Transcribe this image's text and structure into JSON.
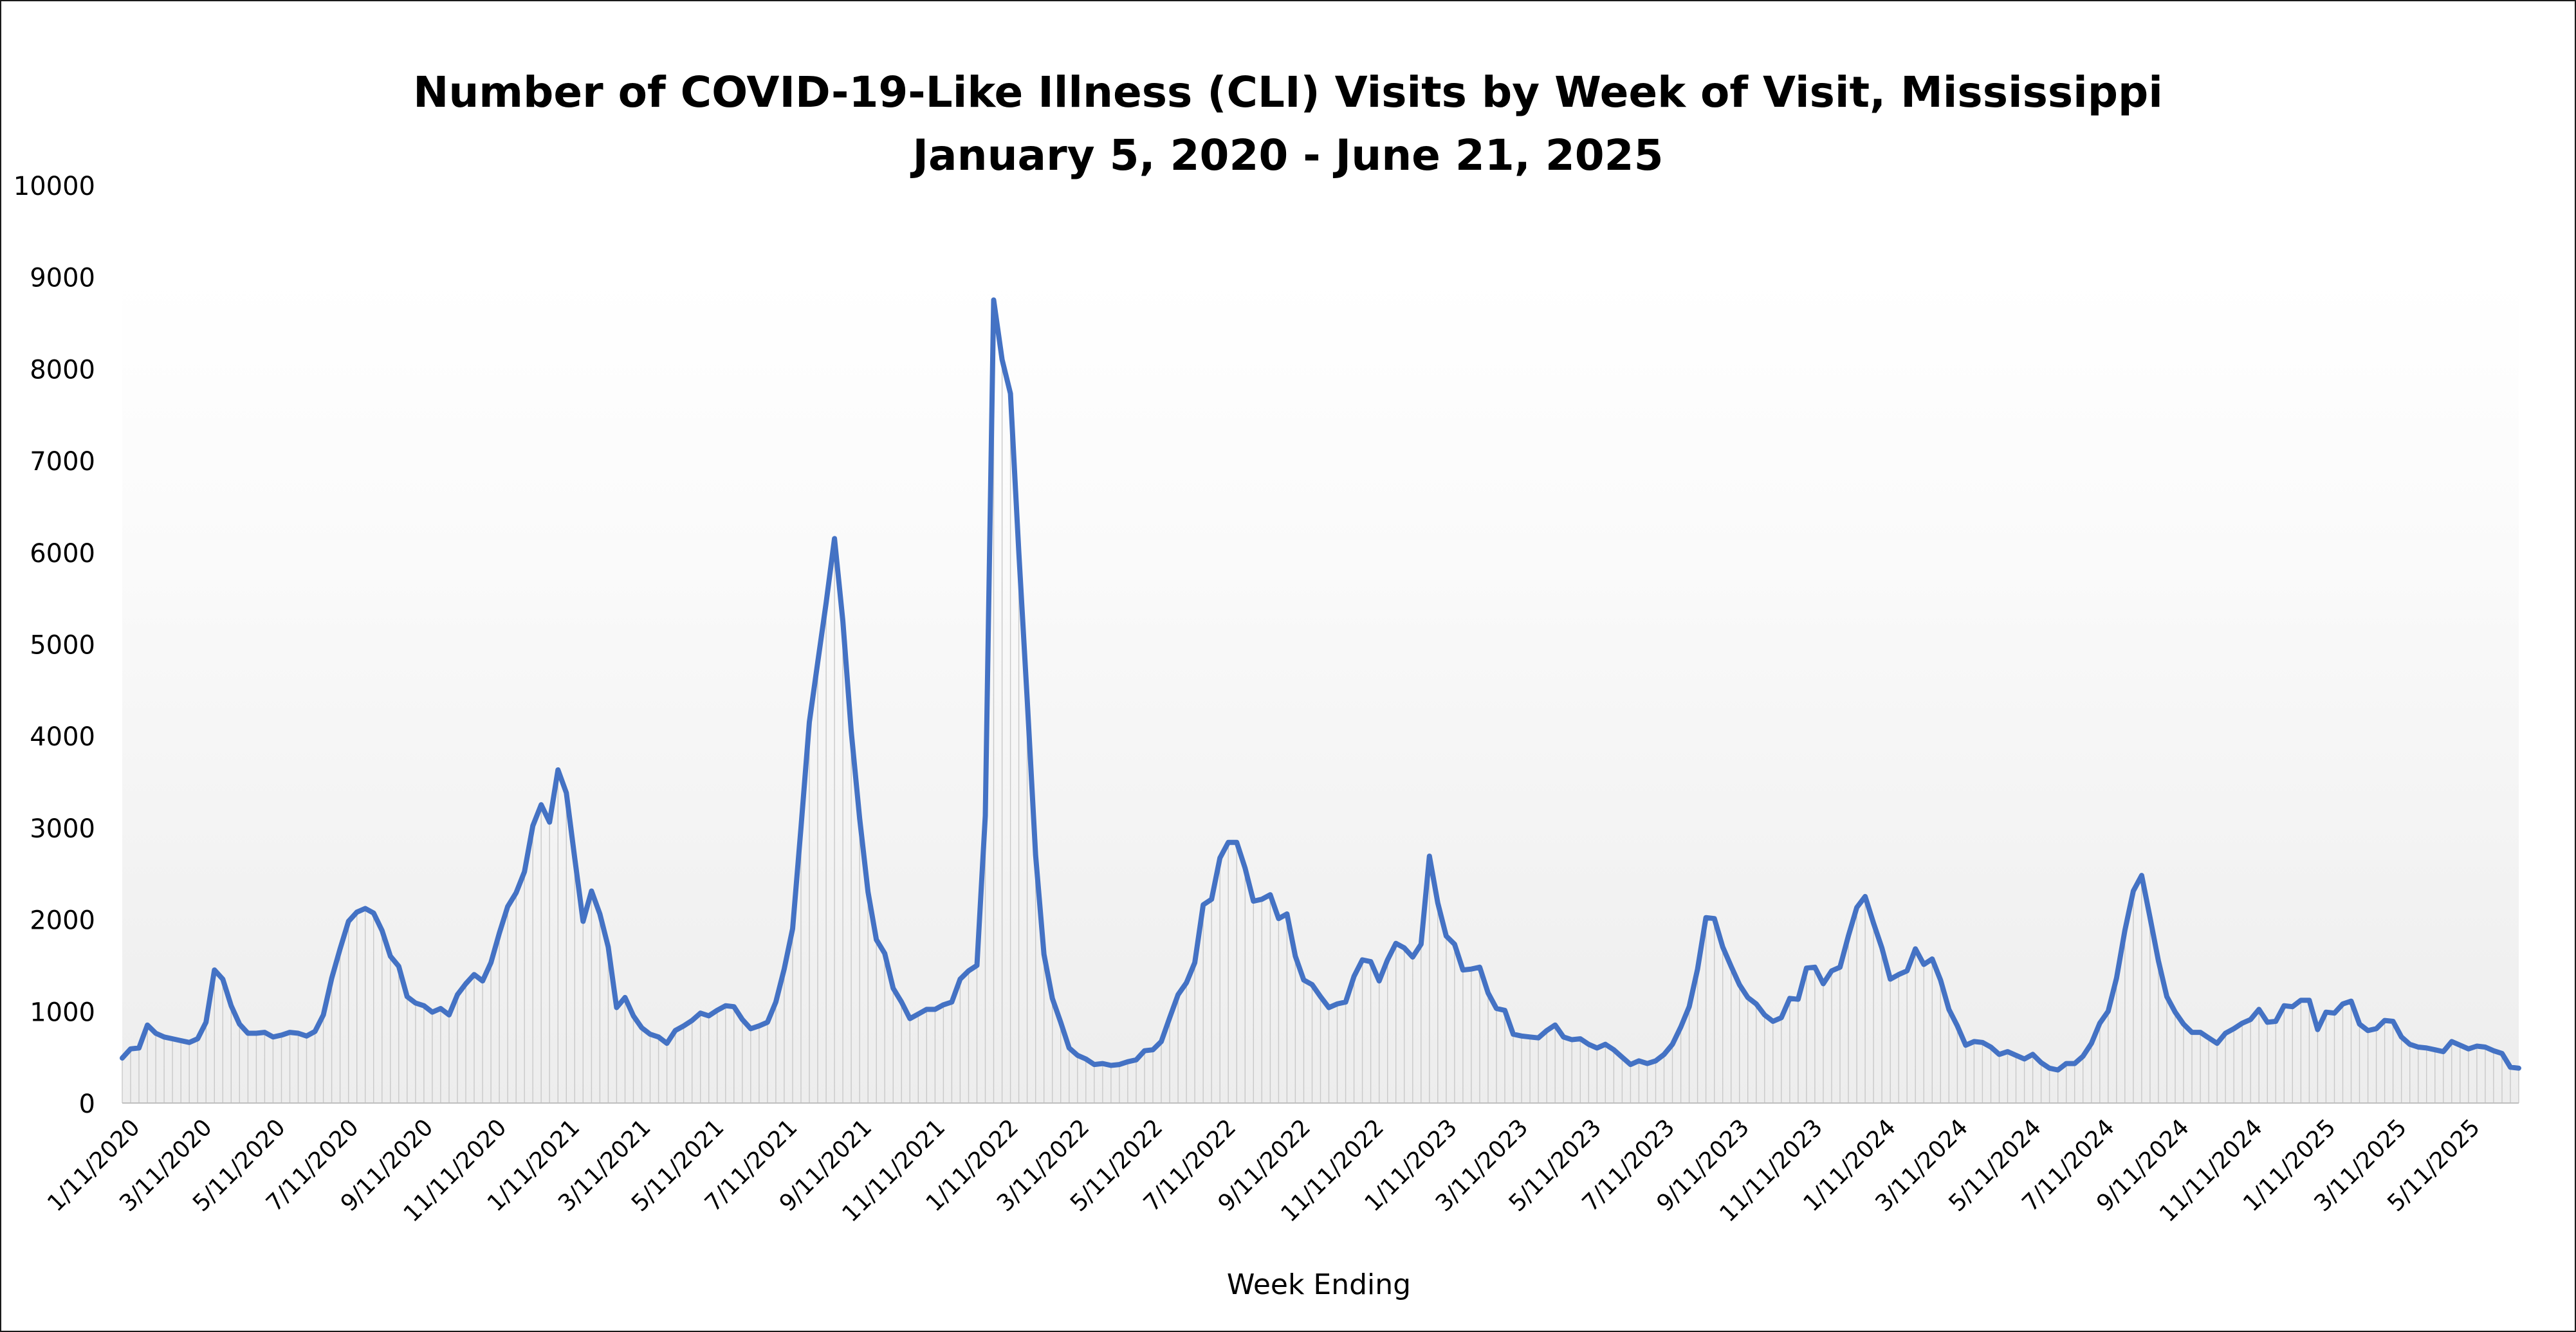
{
  "chart_data": {
    "type": "area",
    "title": "Number of COVID-19-Like Illness (CLI) Visits by Week of Visit, Mississippi",
    "subtitle": "January 5, 2020 - June 21, 2025",
    "xlabel": "Week Ending",
    "ylabel": "",
    "ylim": [
      0,
      10000
    ],
    "yticks": [
      "0",
      "1000",
      "2000",
      "3000",
      "4000",
      "5000",
      "6000",
      "7000",
      "8000",
      "9000",
      "10000"
    ],
    "x_start": "1/5/2020",
    "x_end": "6/21/2025",
    "x_interval": "weekly",
    "xtick_labels": [
      "1/11/2020",
      "3/11/2020",
      "5/11/2020",
      "7/11/2020",
      "9/11/2020",
      "11/11/2020",
      "1/11/2021",
      "3/11/2021",
      "5/11/2021",
      "7/11/2021",
      "9/11/2021",
      "11/11/2021",
      "1/11/2022",
      "3/11/2022",
      "5/11/2022",
      "7/11/2022",
      "9/11/2022",
      "11/11/2022",
      "1/11/2023",
      "3/11/2023",
      "5/11/2023",
      "7/11/2023",
      "9/11/2023",
      "11/11/2023",
      "1/11/2024",
      "3/11/2024",
      "5/11/2024",
      "7/11/2024",
      "9/11/2024",
      "11/11/2024",
      "1/11/2025",
      "3/11/2025",
      "5/11/2025"
    ],
    "grid": false,
    "series_color": "#4472C4",
    "values": [
      490,
      590,
      600,
      850,
      760,
      720,
      700,
      680,
      660,
      700,
      880,
      1450,
      1350,
      1060,
      860,
      760,
      760,
      770,
      720,
      740,
      770,
      760,
      730,
      780,
      960,
      1360,
      1680,
      1980,
      2080,
      2120,
      2070,
      1880,
      1600,
      1490,
      1160,
      1090,
      1060,
      990,
      1030,
      960,
      1180,
      1300,
      1400,
      1330,
      1530,
      1850,
      2140,
      2290,
      2520,
      3020,
      3250,
      3060,
      3630,
      3380,
      2670,
      1980,
      2310,
      2060,
      1700,
      1040,
      1150,
      950,
      820,
      750,
      720,
      650,
      790,
      840,
      900,
      980,
      950,
      1010,
      1060,
      1050,
      910,
      810,
      840,
      880,
      1100,
      1460,
      1900,
      3000,
      4150,
      4800,
      5450,
      6150,
      5250,
      4050,
      3100,
      2300,
      1780,
      1630,
      1250,
      1100,
      920,
      970,
      1020,
      1020,
      1070,
      1100,
      1350,
      1440,
      1500,
      3130,
      8750,
      8100,
      7730,
      6000,
      4400,
      2700,
      1620,
      1140,
      880,
      600,
      520,
      480,
      420,
      430,
      410,
      420,
      450,
      470,
      570,
      580,
      670,
      930,
      1180,
      1310,
      1530,
      2160,
      2220,
      2670,
      2840,
      2840,
      2560,
      2200,
      2220,
      2270,
      2010,
      2060,
      1600,
      1340,
      1290,
      1160,
      1040,
      1080,
      1100,
      1380,
      1560,
      1540,
      1330,
      1560,
      1740,
      1690,
      1590,
      1730,
      2690,
      2180,
      1820,
      1730,
      1450,
      1460,
      1480,
      1200,
      1030,
      1010,
      750,
      730,
      720,
      710,
      790,
      850,
      720,
      690,
      700,
      640,
      600,
      640,
      580,
      500,
      420,
      460,
      430,
      460,
      530,
      640,
      830,
      1050,
      1460,
      2020,
      2010,
      1700,
      1490,
      1290,
      1150,
      1080,
      960,
      890,
      930,
      1140,
      1130,
      1470,
      1480,
      1300,
      1440,
      1480,
      1820,
      2130,
      2250,
      1960,
      1690,
      1350,
      1400,
      1440,
      1680,
      1510,
      1570,
      1340,
      1020,
      840,
      630,
      670,
      660,
      610,
      530,
      560,
      520,
      480,
      530,
      440,
      380,
      360,
      430,
      430,
      510,
      650,
      870,
      1000,
      1360,
      1880,
      2310,
      2480,
      2020,
      1550,
      1160,
      990,
      860,
      770,
      770,
      710,
      650,
      760,
      810,
      870,
      910,
      1020,
      880,
      890,
      1060,
      1050,
      1120,
      1120,
      800,
      990,
      980,
      1080,
      1110,
      860,
      790,
      810,
      900,
      890,
      720,
      640,
      610,
      600,
      580,
      560,
      670,
      630,
      590,
      620,
      610,
      570,
      540,
      390,
      380
    ]
  }
}
